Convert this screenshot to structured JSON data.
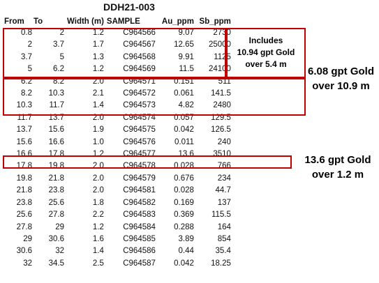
{
  "title": "DDH21-003",
  "headers": [
    "From",
    "To",
    "Width (m)",
    "SAMPLE",
    "Au_ppm",
    "Sb_ppm"
  ],
  "rows": [
    [
      "0.8",
      "2",
      "1.2",
      "C964566",
      "9.07",
      "2730"
    ],
    [
      "2",
      "3.7",
      "1.7",
      "C964567",
      "12.65",
      "25000"
    ],
    [
      "3.7",
      "5",
      "1.3",
      "C964568",
      "9.91",
      "1125"
    ],
    [
      "5",
      "6.2",
      "1.2",
      "C964569",
      "11.5",
      "24100"
    ],
    [
      "6.2",
      "8.2",
      "2.0",
      "C964571",
      "0.151",
      "511"
    ],
    [
      "8.2",
      "10.3",
      "2.1",
      "C964572",
      "0.061",
      "141.5"
    ],
    [
      "10.3",
      "11.7",
      "1.4",
      "C964573",
      "4.82",
      "2480"
    ],
    [
      "11.7",
      "13.7",
      "2.0",
      "C964574",
      "0.057",
      "129.5"
    ],
    [
      "13.7",
      "15.6",
      "1.9",
      "C964575",
      "0.042",
      "126.5"
    ],
    [
      "15.6",
      "16.6",
      "1.0",
      "C964576",
      "0.011",
      "240"
    ],
    [
      "16.6",
      "17.8",
      "1.2",
      "C964577",
      "13.6",
      "3510"
    ],
    [
      "17.8",
      "19.8",
      "2.0",
      "C964578",
      "0.028",
      "766"
    ],
    [
      "19.8",
      "21.8",
      "2.0",
      "C964579",
      "0.676",
      "234"
    ],
    [
      "21.8",
      "23.8",
      "2.0",
      "C964581",
      "0.028",
      "44.7"
    ],
    [
      "23.8",
      "25.6",
      "1.8",
      "C964582",
      "0.169",
      "137"
    ],
    [
      "25.6",
      "27.8",
      "2.2",
      "C964583",
      "0.369",
      "115.5"
    ],
    [
      "27.8",
      "29",
      "1.2",
      "C964584",
      "0.288",
      "164"
    ],
    [
      "29",
      "30.6",
      "1.6",
      "C964585",
      "3.89",
      "854"
    ],
    [
      "30.6",
      "32",
      "1.4",
      "C964586",
      "0.44",
      "35.4"
    ],
    [
      "32",
      "34.5",
      "2.5",
      "C964587",
      "0.042",
      "18.25"
    ]
  ],
  "annotations": {
    "includes": [
      "Includes",
      "10.94 gpt Gold",
      "over 5.4 m"
    ],
    "interval_1": [
      "6.08 gpt Gold",
      "over 10.9 m"
    ],
    "interval_2": [
      "13.6 gpt Gold",
      "over 1.2 m"
    ]
  },
  "colors": {
    "highlight_box": "#c00000"
  }
}
